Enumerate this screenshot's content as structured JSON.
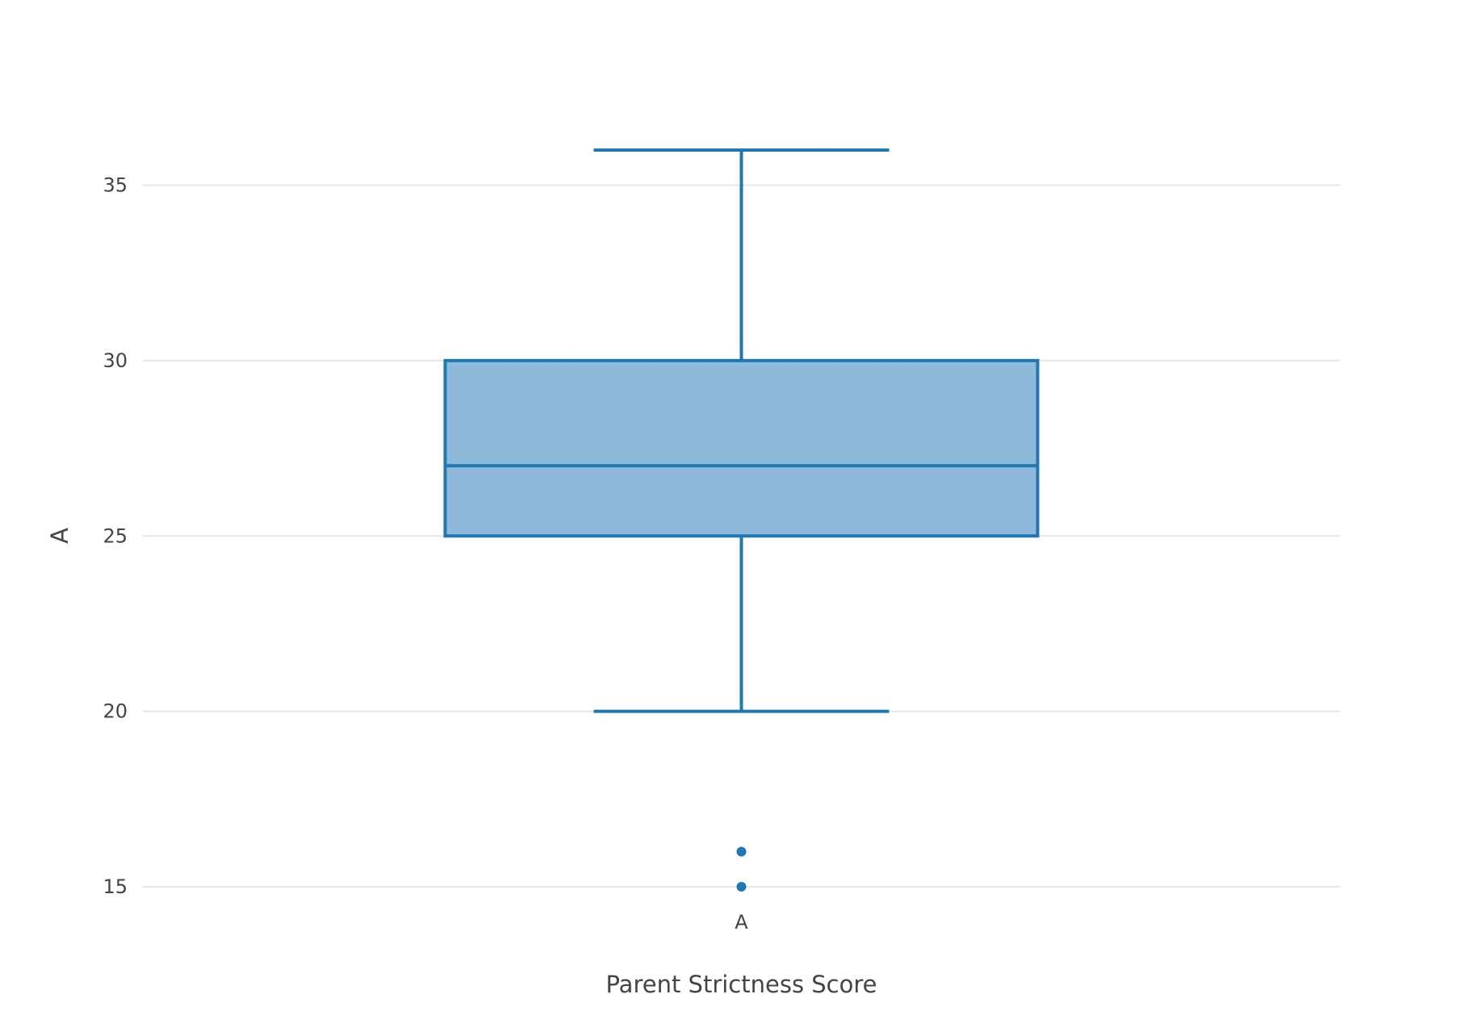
{
  "chart_data": {
    "type": "box",
    "title": "",
    "xlabel": "Parent Strictness Score",
    "ylabel": "A",
    "categories": [
      "A"
    ],
    "ylim": [
      12.7,
      38.6
    ],
    "yticks": [
      15,
      20,
      25,
      30,
      35
    ],
    "grid": true,
    "legend": "none",
    "series": [
      {
        "category": "A",
        "lower_whisker": 20,
        "q1": 25,
        "median": 27,
        "q3": 30,
        "upper_whisker": 36,
        "outliers": [
          15,
          16
        ]
      }
    ],
    "colors": {
      "line": "#1f77b4",
      "fill": "#8fb9d9",
      "grid": "#e6e6e6",
      "text": "#444444"
    }
  }
}
